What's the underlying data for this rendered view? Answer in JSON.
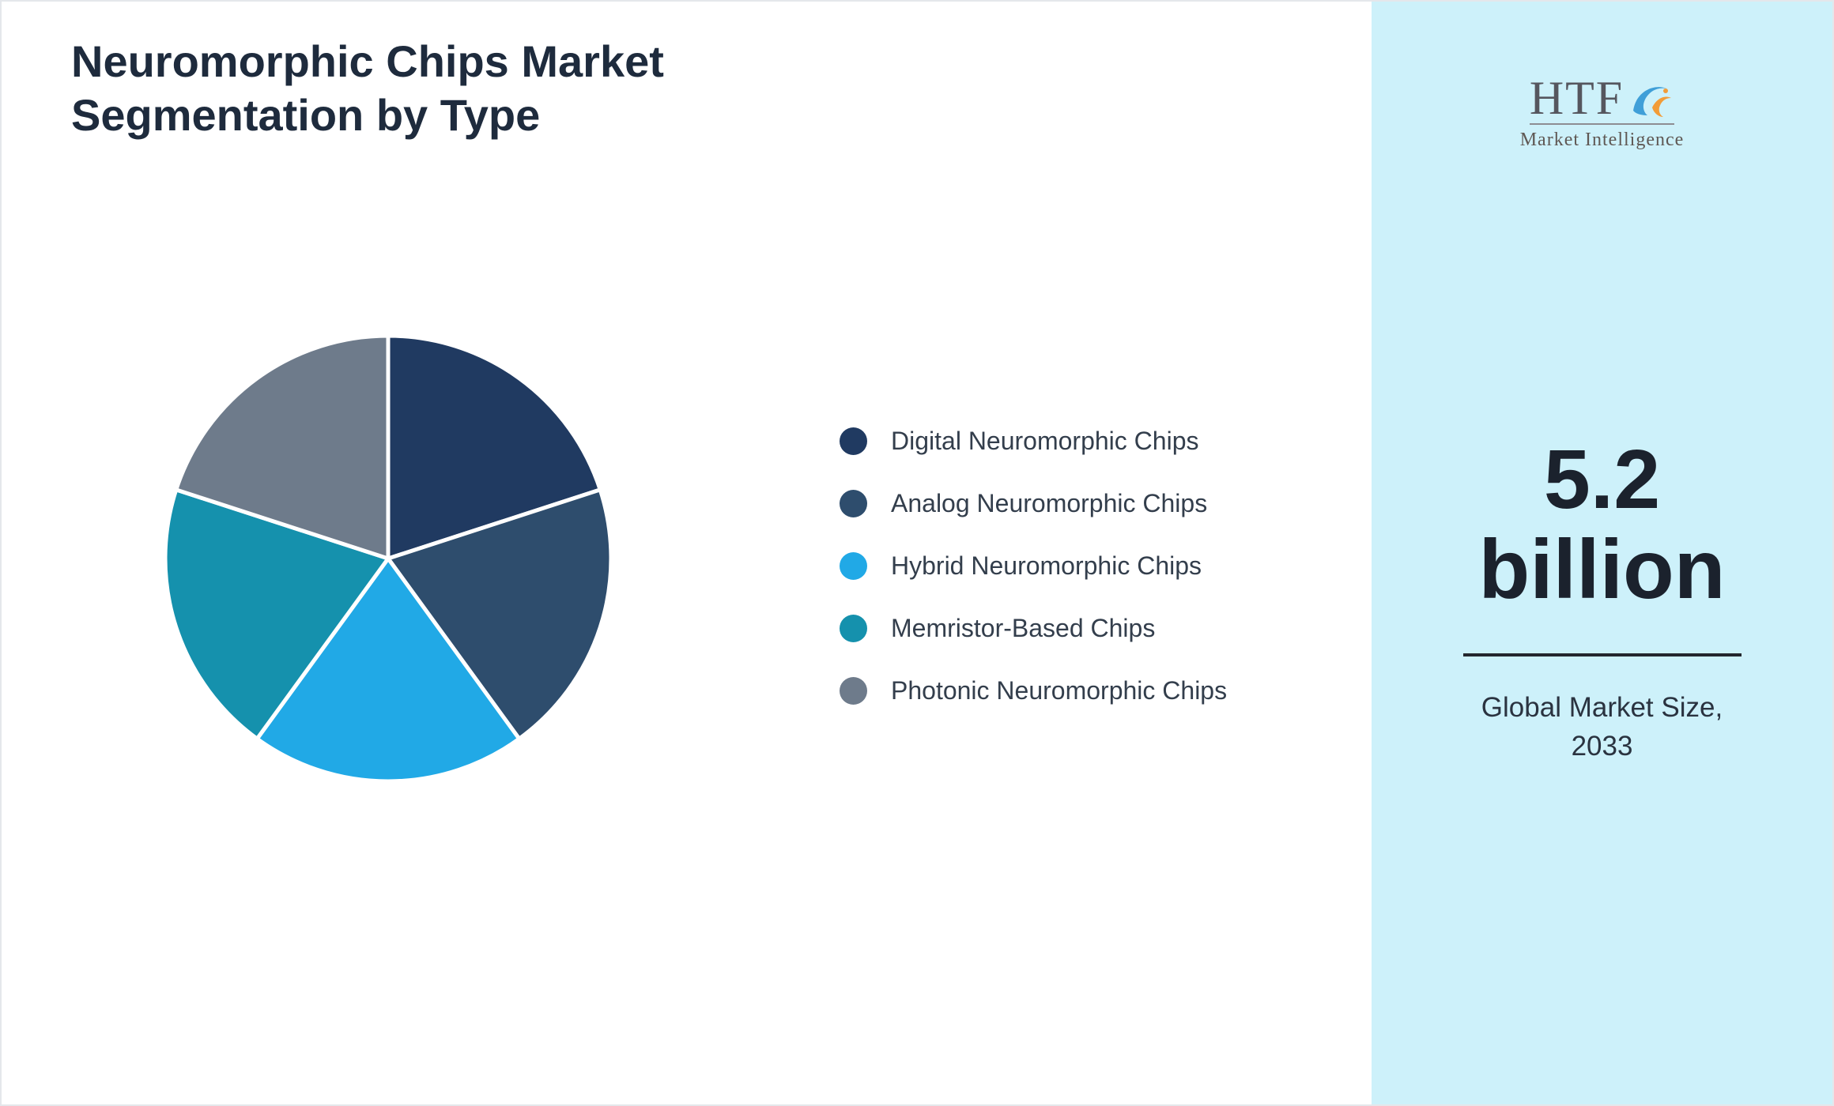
{
  "title": "Neuromorphic Chips Market\nSegmentation by Type",
  "colors": {
    "sidebar_background": "#cdf1fa",
    "title_text": "#1e2b3d",
    "legend_text": "#333e4c"
  },
  "sidebar": {
    "logo": {
      "text": "HTF",
      "subtext": "Market Intelligence",
      "icon": "dolphin-icon"
    },
    "market_size": {
      "value_line1": "5.2",
      "value_line2": "billion",
      "caption_line1": "Global Market Size,",
      "caption_line2": "2033"
    }
  },
  "chart_data": {
    "type": "pie",
    "title": "Neuromorphic Chips Market Segmentation by Type",
    "legend_position": "right",
    "start_angle_deg": 0,
    "direction": "clockwise",
    "units": "percent (equal segmentation shown)",
    "segments": [
      {
        "label": "Digital Neuromorphic Chips",
        "value": 20,
        "color": "#203a61"
      },
      {
        "label": "Analog Neuromorphic Chips",
        "value": 20,
        "color": "#2e4d6d"
      },
      {
        "label": "Hybrid Neuromorphic Chips",
        "value": 20,
        "color": "#21a9e6"
      },
      {
        "label": "Memristor-Based Chips",
        "value": 20,
        "color": "#1591ad"
      },
      {
        "label": "Photonic Neuromorphic Chips",
        "value": 20,
        "color": "#6e7b8b"
      }
    ]
  }
}
